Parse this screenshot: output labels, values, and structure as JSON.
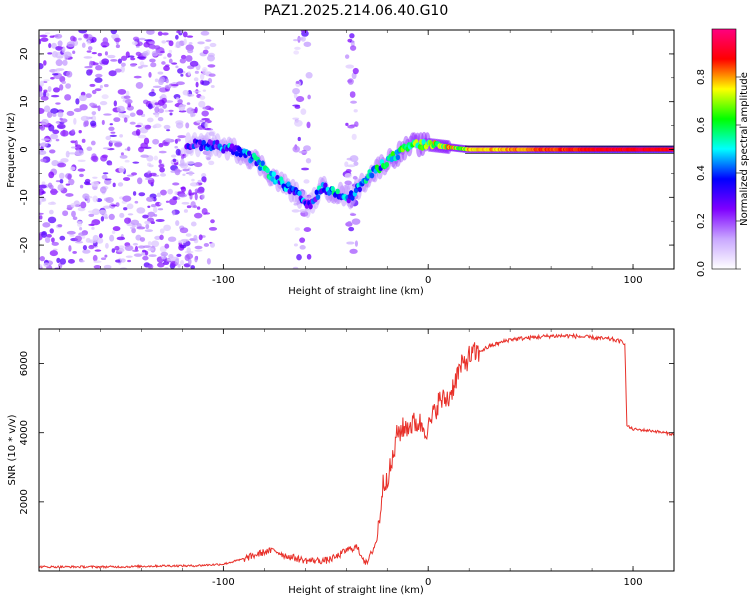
{
  "chart_data": [
    {
      "type": "heatmap",
      "title": "PAZ1.2025.214.06.40.G10",
      "xlabel": "Height of straight line (km)",
      "ylabel": "Frequency (Hz)",
      "xlim": [
        -190,
        120
      ],
      "ylim": [
        -25,
        25
      ],
      "x_ticks": [
        -100,
        0,
        100
      ],
      "y_ticks": [
        -20,
        -10,
        0,
        10,
        20
      ],
      "colorbar": {
        "label": "Normalized spectral amplitude",
        "range": [
          0,
          1
        ],
        "ticks": [
          "0.0",
          "0.2",
          "0.4",
          "0.6",
          "0.8"
        ],
        "colormap": [
          "#ffffff",
          "#c9a8ff",
          "#7f00ff",
          "#0000ff",
          "#00ffff",
          "#00ff00",
          "#ffff00",
          "#ff0000",
          "#ff0080"
        ]
      },
      "ridge": {
        "x": [
          -115,
          -105,
          -95,
          -85,
          -75,
          -65,
          -58,
          -52,
          -45,
          -38,
          -30,
          -22,
          -15,
          -8,
          0,
          10,
          20,
          40,
          60,
          80,
          95,
          120
        ],
        "y": [
          1,
          1,
          0,
          -2,
          -6,
          -9,
          -12,
          -8,
          -9,
          -10,
          -6,
          -3,
          -1,
          1,
          1,
          0.5,
          0,
          0,
          0,
          0,
          0,
          0
        ],
        "amplitude": [
          0.3,
          0.35,
          0.4,
          0.45,
          0.45,
          0.4,
          0.35,
          0.4,
          0.45,
          0.4,
          0.45,
          0.5,
          0.55,
          0.6,
          0.65,
          0.7,
          0.75,
          0.8,
          0.85,
          0.9,
          0.9,
          0.9
        ]
      }
    },
    {
      "type": "line",
      "xlabel": "Height of straight line (km)",
      "ylabel": "SNR (10 * v/v)",
      "xlim": [
        -190,
        120
      ],
      "ylim": [
        0,
        7000
      ],
      "x_ticks": [
        -100,
        0,
        100
      ],
      "y_ticks": [
        2000,
        4000,
        6000
      ],
      "series": [
        {
          "color": "#e8312a",
          "x": [
            -190,
            -170,
            -150,
            -130,
            -115,
            -100,
            -90,
            -80,
            -75,
            -70,
            -60,
            -50,
            -45,
            -40,
            -35,
            -30,
            -25,
            -22,
            -18,
            -15,
            -10,
            -5,
            0,
            5,
            10,
            15,
            20,
            30,
            40,
            50,
            60,
            70,
            80,
            90,
            96,
            97,
            100,
            110,
            120
          ],
          "y": [
            120,
            120,
            120,
            150,
            150,
            200,
            350,
            550,
            600,
            450,
            300,
            300,
            400,
            600,
            700,
            200,
            900,
            2500,
            3000,
            4000,
            4200,
            4300,
            4100,
            4900,
            5000,
            5800,
            6200,
            6500,
            6700,
            6750,
            6800,
            6800,
            6750,
            6700,
            6600,
            4200,
            4100,
            4050,
            3950
          ]
        }
      ]
    }
  ]
}
